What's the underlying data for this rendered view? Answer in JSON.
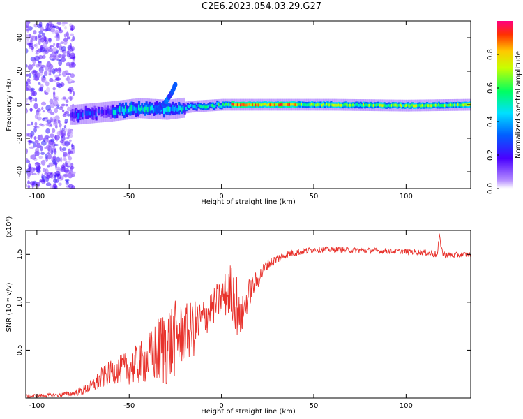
{
  "title": "C2E6.2023.054.03.29.G27",
  "colors": {
    "snr_line": "#e8322c",
    "axis": "#000000",
    "background": "#ffffff"
  },
  "chart_data": [
    {
      "type": "heatmap",
      "xlabel": "Height of straight line (km)",
      "ylabel": "Frequency (Hz)",
      "xlim": [
        -106,
        135
      ],
      "ylim": [
        -50,
        50
      ],
      "xticks": [
        -100,
        -50,
        0,
        50,
        100
      ],
      "yticks": [
        -40,
        -20,
        0,
        20,
        40
      ],
      "grid": false,
      "colorbar": {
        "label": "Normalized spectral amplitude",
        "range": [
          0,
          1
        ],
        "ticks": [
          0.0,
          0.2,
          0.4,
          0.6,
          0.8
        ],
        "colormap": "rainbow-white"
      },
      "band_center_hz": [
        [
          -80,
          -6
        ],
        [
          -60,
          -4
        ],
        [
          -45,
          -2
        ],
        [
          -30,
          -3
        ],
        [
          -15,
          -1
        ],
        [
          0,
          0
        ],
        [
          20,
          0
        ],
        [
          60,
          0
        ],
        [
          100,
          -0.5
        ],
        [
          135,
          0
        ]
      ],
      "branch": {
        "x": [
          -35,
          -30,
          -27,
          -25
        ],
        "y": [
          -4,
          2,
          7,
          12
        ]
      }
    },
    {
      "type": "line",
      "xlabel": "Height of straight line (km)",
      "ylabel": "SNR (10 * v/v)",
      "yscale_label": "(x10⁴)",
      "xlim": [
        -106,
        135
      ],
      "ylim": [
        0,
        1.75
      ],
      "xticks": [
        -100,
        -50,
        0,
        50,
        100
      ],
      "yticks": [
        0.5,
        1.0,
        1.5
      ],
      "ytick_labels": [
        "0.5",
        "1.0",
        "1.5"
      ],
      "grid": false,
      "series": [
        {
          "x": [
            -106,
            -90,
            -80,
            -75,
            -70,
            -65,
            -60,
            -55,
            -50,
            -45,
            -40,
            -35,
            -30,
            -25,
            -20,
            -15,
            -10,
            -5,
            0,
            5,
            8,
            10,
            15,
            20,
            25,
            30,
            35,
            40,
            50,
            60,
            80,
            100,
            110,
            117,
            118,
            120,
            125,
            135
          ],
          "y": [
            0.02,
            0.03,
            0.05,
            0.08,
            0.13,
            0.2,
            0.27,
            0.3,
            0.32,
            0.35,
            0.4,
            0.48,
            0.55,
            0.62,
            0.68,
            0.72,
            0.82,
            0.95,
            1.05,
            1.12,
            1.0,
            0.8,
            1.1,
            1.25,
            1.4,
            1.45,
            1.5,
            1.52,
            1.55,
            1.55,
            1.54,
            1.53,
            1.52,
            1.5,
            1.68,
            1.5,
            1.49,
            1.5
          ],
          "noise": [
            0.02,
            0.02,
            0.03,
            0.05,
            0.07,
            0.12,
            0.12,
            0.15,
            0.18,
            0.22,
            0.25,
            0.35,
            0.45,
            0.4,
            0.3,
            0.3,
            0.22,
            0.2,
            0.2,
            0.3,
            0.35,
            0.2,
            0.15,
            0.1,
            0.06,
            0.05,
            0.04,
            0.04,
            0.03,
            0.03,
            0.03,
            0.03,
            0.03,
            0.04,
            0.04,
            0.03,
            0.03,
            0.03
          ]
        }
      ]
    }
  ]
}
